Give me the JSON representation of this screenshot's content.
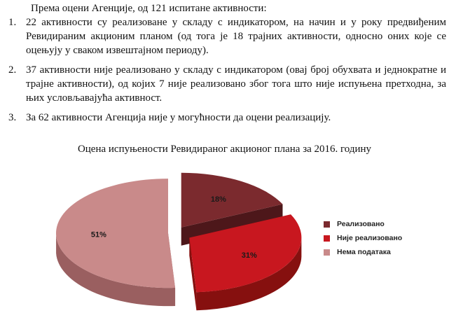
{
  "intro": "Према оцени Агенције, од 121 испитане активности:",
  "items": [
    {
      "num": "1.",
      "text": "22 активности су реализоване у складу с индикатором, на начин и у року предвиђеним Ревидираним акционим планом (од тога је 18 трајних активности, односно оних које се оцењују у сваком извештајном периоду)."
    },
    {
      "num": "2.",
      "text": "37 активности није реализовано у складу с индикатором (овај број обухвата и једнократне и трајне активности), од којих 7 није реализовано због тога што није испуњена претходна, за њих условљавајућа активност."
    },
    {
      "num": "3.",
      "text": "За 62 активности Агенција није у могућности да оцени реализацију."
    }
  ],
  "chart_data": {
    "type": "pie",
    "title": "Оцена испуњености Ревидираног акционог плана за 2016. годину",
    "legend_position": "right",
    "slices": [
      {
        "label": "Реализовано",
        "value": 18,
        "display": "18%",
        "color": "#7b2a2e",
        "side_color": "#4d171a"
      },
      {
        "label": "Није реализовано",
        "value": 31,
        "display": "31%",
        "color": "#c8171f",
        "side_color": "#86100f"
      },
      {
        "label": "Нема података",
        "value": 51,
        "display": "51%",
        "color": "#c98a8a",
        "side_color": "#9a5f60"
      }
    ]
  }
}
